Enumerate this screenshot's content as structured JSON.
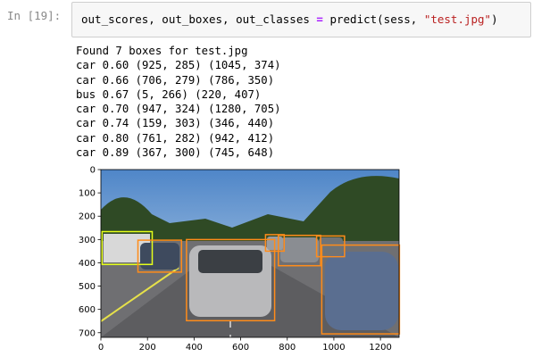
{
  "prompt": "In [19]:",
  "code": [
    "out_scores, out_boxes, out_classes ",
    "=",
    " predict(sess, ",
    "\"test.jpg\"",
    ")"
  ],
  "output": [
    "Found 7 boxes for test.jpg",
    "car 0.60 (925, 285) (1045, 374)",
    "car 0.66 (706, 279) (786, 350)",
    "bus 0.67 (5, 266) (220, 407)",
    "car 0.70 (947, 324) (1280, 705)",
    "car 0.74 (159, 303) (346, 440)",
    "car 0.80 (761, 282) (942, 412)",
    "car 0.89 (367, 300) (745, 648)"
  ],
  "plot": {
    "xlim": [
      0,
      1280
    ],
    "ylim": [
      720,
      0
    ],
    "xticks": [
      0,
      200,
      400,
      600,
      800,
      1000,
      1200
    ],
    "yticks": [
      0,
      100,
      200,
      300,
      400,
      500,
      600,
      700
    ]
  }
}
